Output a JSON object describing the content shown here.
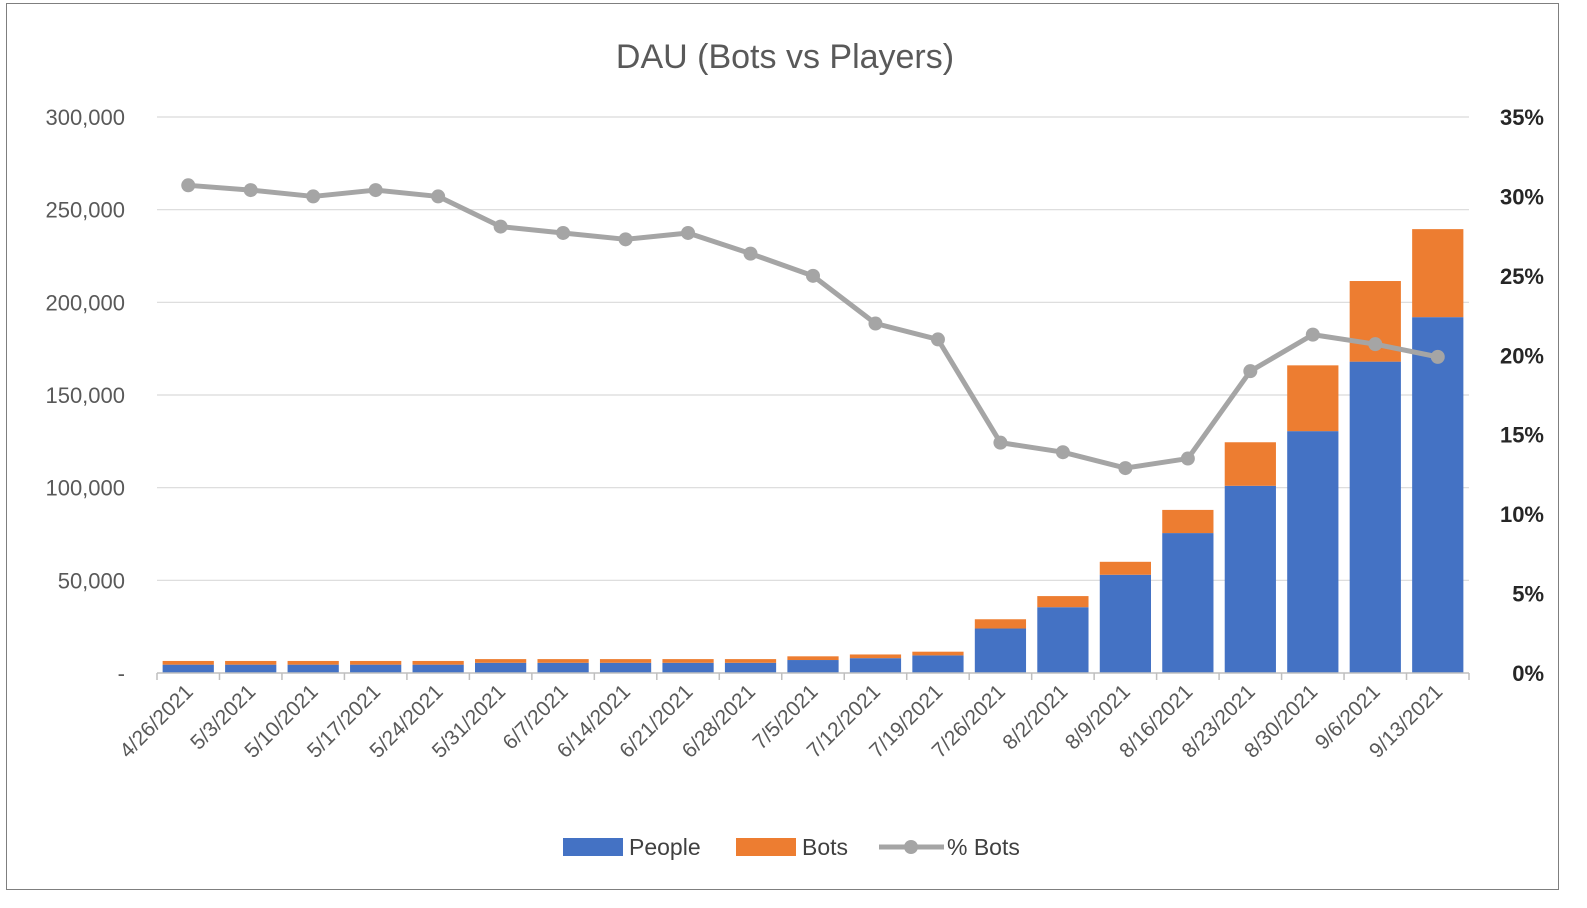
{
  "chart_data": {
    "type": "bar",
    "title": "DAU (Bots vs Players)",
    "xlabel": "",
    "ylabel": "",
    "y2label": "",
    "stacked": true,
    "ylim": [
      0,
      300000
    ],
    "y2lim": [
      0,
      0.35
    ],
    "grid": true,
    "legend_position": "bottom",
    "y_ticks": [
      "-",
      "50,000",
      "100,000",
      "150,000",
      "200,000",
      "250,000",
      "300,000"
    ],
    "y2_ticks": [
      "0%",
      "5%",
      "10%",
      "15%",
      "20%",
      "25%",
      "30%",
      "35%"
    ],
    "categories": [
      "4/26/2021",
      "5/3/2021",
      "5/10/2021",
      "5/17/2021",
      "5/24/2021",
      "5/31/2021",
      "6/7/2021",
      "6/14/2021",
      "6/21/2021",
      "6/28/2021",
      "7/5/2021",
      "7/12/2021",
      "7/19/2021",
      "7/26/2021",
      "8/2/2021",
      "8/9/2021",
      "8/16/2021",
      "8/23/2021",
      "8/30/2021",
      "9/6/2021",
      "9/13/2021"
    ],
    "series": [
      {
        "name": "People",
        "type": "bar",
        "axis": "left",
        "color": "#4472c4",
        "values": [
          4500,
          4500,
          4500,
          4500,
          4500,
          5500,
          5500,
          5500,
          5500,
          5500,
          7000,
          8000,
          9500,
          24000,
          35500,
          53000,
          75500,
          101000,
          130500,
          168000,
          192000
        ]
      },
      {
        "name": "Bots",
        "type": "bar",
        "axis": "left",
        "color": "#ed7d31",
        "values": [
          2000,
          2000,
          2000,
          2000,
          2000,
          2000,
          2000,
          2000,
          2000,
          2000,
          2000,
          2000,
          2000,
          5000,
          6000,
          7000,
          12500,
          23500,
          35500,
          43500,
          47500
        ]
      },
      {
        "name": "% Bots",
        "type": "line",
        "axis": "right",
        "color": "#a5a5a5",
        "values": [
          0.307,
          0.304,
          0.3,
          0.304,
          0.3,
          0.281,
          0.277,
          0.273,
          0.277,
          0.264,
          0.25,
          0.22,
          0.21,
          0.145,
          0.139,
          0.129,
          0.135,
          0.19,
          0.213,
          0.207,
          0.199
        ]
      }
    ]
  }
}
